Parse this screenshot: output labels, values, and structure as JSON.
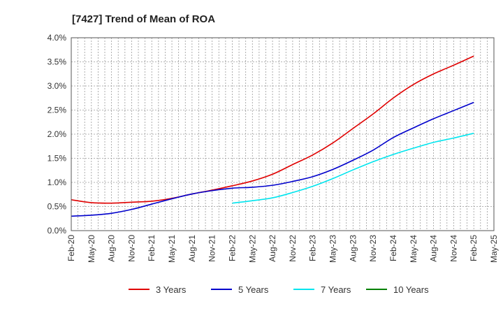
{
  "chart_data": {
    "type": "line",
    "title": "[7427]  Trend of Mean of ROA",
    "xlabel": "",
    "ylabel": "",
    "ylim": [
      0,
      4.0
    ],
    "y_ticks": [
      0,
      0.5,
      1.0,
      1.5,
      2.0,
      2.5,
      3.0,
      3.5,
      4.0
    ],
    "y_tick_labels": [
      "0.0%",
      "0.5%",
      "1.0%",
      "1.5%",
      "2.0%",
      "2.5%",
      "3.0%",
      "3.5%",
      "4.0%"
    ],
    "x_tick_labels": [
      "Feb-20",
      "May-20",
      "Aug-20",
      "Nov-20",
      "Feb-21",
      "May-21",
      "Aug-21",
      "Nov-21",
      "Feb-22",
      "May-22",
      "Aug-22",
      "Nov-22",
      "Feb-23",
      "May-23",
      "Aug-23",
      "Nov-23",
      "Feb-24",
      "May-24",
      "Aug-24",
      "Nov-24",
      "Feb-25",
      "May-25"
    ],
    "x_range_months": [
      0,
      63
    ],
    "grid": true,
    "legend_position": "bottom",
    "series": [
      {
        "name": "3 Years",
        "color": "#e00000",
        "x": [
          0,
          3,
          6,
          9,
          12,
          15,
          18,
          21,
          24,
          27,
          30,
          33,
          36,
          39,
          42,
          45,
          48,
          51,
          54,
          57,
          60
        ],
        "values": [
          0.64,
          0.58,
          0.57,
          0.59,
          0.61,
          0.67,
          0.76,
          0.84,
          0.93,
          1.03,
          1.17,
          1.37,
          1.57,
          1.82,
          2.12,
          2.42,
          2.75,
          3.03,
          3.25,
          3.43,
          3.62
        ]
      },
      {
        "name": "5 Years",
        "color": "#0000cc",
        "x": [
          0,
          3,
          6,
          9,
          12,
          15,
          18,
          21,
          24,
          27,
          30,
          33,
          36,
          39,
          42,
          45,
          48,
          51,
          54,
          57,
          60
        ],
        "values": [
          0.3,
          0.32,
          0.36,
          0.44,
          0.55,
          0.66,
          0.76,
          0.83,
          0.88,
          0.9,
          0.94,
          1.02,
          1.12,
          1.27,
          1.46,
          1.67,
          1.93,
          2.13,
          2.32,
          2.49,
          2.66
        ]
      },
      {
        "name": "7 Years",
        "color": "#00e5ee",
        "x": [
          24,
          27,
          30,
          33,
          36,
          39,
          42,
          45,
          48,
          51,
          54,
          57,
          60
        ],
        "values": [
          0.57,
          0.62,
          0.68,
          0.79,
          0.92,
          1.08,
          1.26,
          1.43,
          1.58,
          1.71,
          1.83,
          1.92,
          2.02
        ]
      },
      {
        "name": "10 Years",
        "color": "#008000",
        "x": [],
        "values": []
      }
    ]
  }
}
